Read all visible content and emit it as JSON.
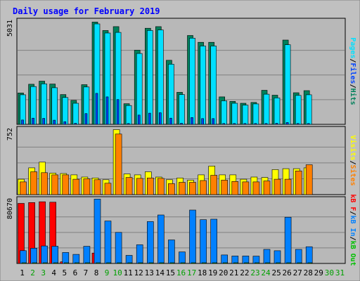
{
  "chart_data": [
    {
      "type": "bar",
      "title": "Daily usage for February 2019",
      "ylabel_parts": [
        "Pages",
        "/",
        "Files",
        "/",
        "Hits"
      ],
      "ymax_label": "5031",
      "ylim": [
        0,
        5031
      ],
      "categories": [
        "1",
        "2",
        "3",
        "4",
        "5",
        "6",
        "7",
        "8",
        "9",
        "10",
        "11",
        "12",
        "13",
        "14",
        "15",
        "16",
        "17",
        "18",
        "19",
        "20",
        "21",
        "22",
        "23",
        "24",
        "25",
        "26",
        "27",
        "28",
        "29",
        "30",
        "31"
      ],
      "weekend_days": [
        "2",
        "3",
        "9",
        "10",
        "16",
        "17",
        "23",
        "24",
        "30",
        "31"
      ],
      "series": [
        {
          "name": "Hits",
          "values": [
            1520,
            1940,
            2090,
            1950,
            1440,
            1160,
            1920,
            4950,
            4540,
            4730,
            1000,
            3590,
            4650,
            4730,
            3100,
            1550,
            4300,
            3970,
            3970,
            1330,
            1110,
            1020,
            1060,
            1650,
            1410,
            4080,
            1530,
            1630,
            0,
            0,
            0
          ]
        },
        {
          "name": "Files",
          "values": [
            1430,
            1830,
            1960,
            1770,
            1300,
            1020,
            1810,
            4860,
            4420,
            4450,
            910,
            3430,
            4540,
            4570,
            2910,
            1440,
            4170,
            3790,
            3790,
            1140,
            1020,
            930,
            990,
            1460,
            1280,
            3850,
            1400,
            1430,
            0,
            0,
            0
          ]
        },
        {
          "name": "Pages",
          "values": [
            210,
            300,
            290,
            200,
            130,
            50,
            520,
            1500,
            1330,
            1200,
            40,
            450,
            540,
            560,
            300,
            50,
            330,
            280,
            280,
            40,
            40,
            40,
            40,
            40,
            50,
            90,
            40,
            40,
            0,
            0,
            0
          ]
        }
      ]
    },
    {
      "type": "bar",
      "ylabel_parts": [
        "Visits",
        "/",
        "Sites"
      ],
      "ymax_label": "752",
      "ylim": [
        0,
        752
      ],
      "series": [
        {
          "name": "Visits",
          "values": [
            175,
            305,
            370,
            245,
            240,
            225,
            200,
            190,
            170,
            740,
            235,
            225,
            260,
            200,
            170,
            190,
            165,
            225,
            325,
            225,
            225,
            175,
            200,
            195,
            285,
            295,
            295,
            305,
            0,
            0,
            0
          ]
        },
        {
          "name": "Sites",
          "values": [
            145,
            260,
            250,
            225,
            225,
            175,
            180,
            170,
            130,
            690,
            195,
            185,
            190,
            185,
            125,
            140,
            140,
            160,
            220,
            165,
            150,
            145,
            145,
            155,
            175,
            175,
            270,
            340,
            0,
            0,
            0
          ]
        }
      ]
    },
    {
      "type": "bar",
      "ylabel_parts": [
        "kB F",
        "/",
        "kB In",
        "/",
        "kB Out"
      ],
      "ymax_label": "80670",
      "ylim": [
        0,
        80670
      ],
      "series": [
        {
          "name": "kB F",
          "values": [
            75000,
            76000,
            77000,
            76500,
            2000,
            0,
            0,
            13000,
            0,
            0,
            0,
            0,
            0,
            0,
            0,
            0,
            0,
            0,
            0,
            0,
            0,
            0,
            0,
            0,
            0,
            0,
            0,
            0,
            0,
            0,
            0
          ]
        },
        {
          "name": "kB In",
          "values": [
            16000,
            19000,
            21800,
            21500,
            13700,
            11300,
            21400,
            80300,
            53000,
            38800,
            10100,
            23300,
            52300,
            60500,
            29400,
            14400,
            66600,
            54600,
            55200,
            10600,
            9300,
            9300,
            9100,
            17500,
            15900,
            57700,
            17500,
            20900,
            0,
            0,
            0
          ]
        },
        {
          "name": "kB Out",
          "values": [
            800,
            800,
            800,
            800,
            800,
            800,
            800,
            800,
            800,
            800,
            800,
            800,
            800,
            800,
            800,
            800,
            800,
            800,
            800,
            800,
            800,
            800,
            800,
            800,
            800,
            800,
            800,
            800,
            0,
            0,
            0
          ]
        }
      ]
    }
  ],
  "colors": {
    "background": "#c0c0c0",
    "title": "#0000ff",
    "hits": "#00805a",
    "files": "#00e0ff",
    "pages": "#0044ff",
    "visits": "#ffff00",
    "sites": "#ff8000",
    "kbf": "#ff0000",
    "kbin": "#0080ff",
    "kbout": "#00c000",
    "weekday_label": "#000000",
    "weekend_label": "#00a000"
  }
}
